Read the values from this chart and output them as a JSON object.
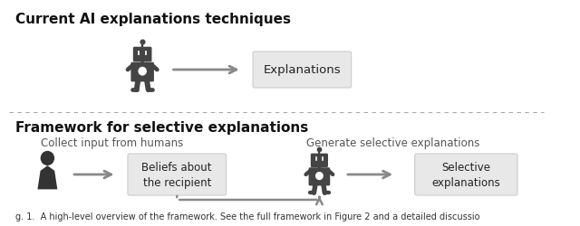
{
  "title1": "Current AI explanations techniques",
  "title2": "Framework for selective explanations",
  "subtitle1": "Collect input from humans",
  "subtitle2": "Generate selective explanations",
  "box1_text": "Explanations",
  "box2_text": "Beliefs about\nthe recipient",
  "box3_text": "Selective\nexplanations",
  "caption": "g. 1.  A high-level overview of the framework. See the full framework in Figure 2 and a detailed discussio",
  "bg_color": "#ffffff",
  "box_fill": "#e8e8e8",
  "box_edge": "#cccccc",
  "arrow_color": "#888888",
  "text_color": "#222222",
  "title_color": "#111111",
  "dashed_line_color": "#aaaaaa",
  "robot_color": "#333333",
  "human_color": "#333333"
}
